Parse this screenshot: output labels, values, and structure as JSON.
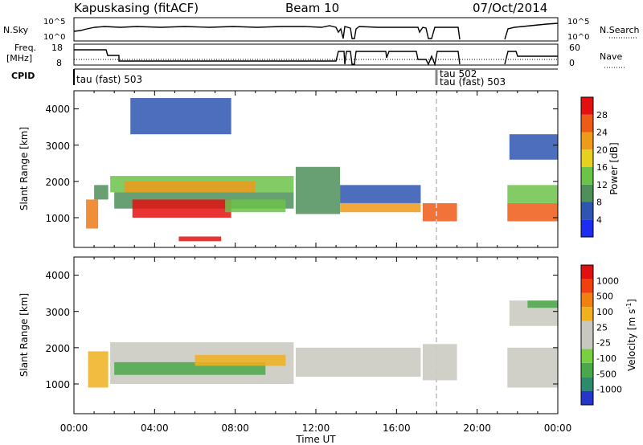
{
  "header": {
    "station": "Kapuskasing (fitACF)",
    "beam": "Beam 10",
    "date": "07/Oct/2014"
  },
  "panels": {
    "nsky": {
      "left_label": "N.Sky",
      "ticks_left": [
        "10^5",
        "10^0"
      ],
      "ticks_right": [
        "10^5",
        "10^0"
      ],
      "right_label": "N.Search",
      "right_legend": "dotted"
    },
    "freq": {
      "left_label_line1": "Freq.",
      "left_label_line2": "[MHz]",
      "ticks_left": [
        "18",
        "8"
      ],
      "ticks_right": [
        "60",
        "0"
      ],
      "right_label": "Nave",
      "right_legend": "dotted"
    },
    "cpid": {
      "label": "CPID",
      "segments": [
        {
          "text": "tau (fast) 503",
          "start_hour": 0.0
        },
        {
          "text": "tau 502",
          "start_hour": 18.05
        },
        {
          "text": "tau (fast) 503",
          "start_hour": 18.05
        }
      ]
    }
  },
  "colorbars": {
    "power": {
      "label": "Power [dB]",
      "ticks": [
        "4",
        "8",
        "12",
        "16",
        "20",
        "24",
        "28"
      ],
      "colors": [
        "#1e2cf0",
        "#2e55b0",
        "#4f8f5a",
        "#6dc24a",
        "#e6d020",
        "#ee9a1a",
        "#ee5a18",
        "#e41010"
      ]
    },
    "velocity": {
      "label": "Velocity [m s",
      "label_superscript": "-1",
      "label_close": "]",
      "ticks": [
        "1000",
        "500",
        "100",
        "25",
        "-25",
        "-100",
        "-500",
        "-1000"
      ],
      "colors": [
        "#2636c8",
        "#2e8a6c",
        "#4aa84a",
        "#78d040",
        "#c8c8c0",
        "#c8c8c0",
        "#f0b020",
        "#f08010",
        "#f04010",
        "#e01010"
      ]
    }
  },
  "chart_data": [
    {
      "type": "heatmap",
      "title": "Kapuskasing (fitACF) Beam 10 07/Oct/2014",
      "variable": "Power",
      "ylabel": "Slant Range [km]",
      "xlabel": "Time UT",
      "x_ticks": [
        "00:00",
        "04:00",
        "08:00",
        "12:00",
        "16:00",
        "20:00",
        "00:00"
      ],
      "y_ticks": [
        "1000",
        "2000",
        "3000",
        "4000"
      ],
      "xlim_hours": [
        0,
        24
      ],
      "ylim_km": [
        180,
        4500
      ],
      "regions": [
        {
          "t0": 0.6,
          "t1": 1.2,
          "r0": 700,
          "r1": 1500,
          "color": "#ee7a18"
        },
        {
          "t0": 1.0,
          "t1": 1.7,
          "r0": 1500,
          "r1": 1900,
          "color": "#4f8f5a"
        },
        {
          "t0": 1.8,
          "t1": 10.9,
          "r0": 1700,
          "r1": 2150,
          "color": "#6dc24a"
        },
        {
          "t0": 2.0,
          "t1": 10.9,
          "r0": 1250,
          "r1": 1700,
          "color": "#4f8f5a"
        },
        {
          "t0": 2.9,
          "t1": 7.8,
          "r0": 1000,
          "r1": 1500,
          "color": "#e41010"
        },
        {
          "t0": 2.5,
          "t1": 9.0,
          "r0": 1700,
          "r1": 2000,
          "color": "#ee9a1a"
        },
        {
          "t0": 7.5,
          "t1": 10.5,
          "r0": 1150,
          "r1": 1500,
          "color": "#6dc24a"
        },
        {
          "t0": 5.2,
          "t1": 7.3,
          "r0": 350,
          "r1": 480,
          "color": "#e41010"
        },
        {
          "t0": 11.0,
          "t1": 13.2,
          "r0": 1100,
          "r1": 2400,
          "color": "#4f8f5a"
        },
        {
          "t0": 13.2,
          "t1": 17.2,
          "r0": 1400,
          "r1": 1900,
          "color": "#2e55b0"
        },
        {
          "t0": 13.2,
          "t1": 17.2,
          "r0": 1150,
          "r1": 1400,
          "color": "#ee9a1a"
        },
        {
          "t0": 17.3,
          "t1": 19.0,
          "r0": 900,
          "r1": 1400,
          "color": "#ee5a18"
        },
        {
          "t0": 21.5,
          "t1": 24.0,
          "r0": 900,
          "r1": 1400,
          "color": "#ee5a18"
        },
        {
          "t0": 21.5,
          "t1": 24.0,
          "r0": 1400,
          "r1": 1900,
          "color": "#6dc24a"
        },
        {
          "t0": 21.6,
          "t1": 24.0,
          "r0": 2600,
          "r1": 3300,
          "color": "#2e55b0"
        },
        {
          "t0": 2.8,
          "t1": 7.8,
          "r0": 3300,
          "r1": 4300,
          "color": "#2e55b0"
        }
      ]
    },
    {
      "type": "heatmap",
      "variable": "Velocity",
      "ylabel": "Slant Range [km]",
      "xlabel": "Time UT",
      "x_ticks": [
        "00:00",
        "04:00",
        "08:00",
        "12:00",
        "16:00",
        "20:00",
        "00:00"
      ],
      "y_ticks": [
        "1000",
        "2000",
        "3000",
        "4000"
      ],
      "xlim_hours": [
        0,
        24
      ],
      "ylim_km": [
        180,
        4500
      ],
      "regions": [
        {
          "t0": 0.7,
          "t1": 1.7,
          "r0": 900,
          "r1": 1900,
          "color": "#f0b020"
        },
        {
          "t0": 1.8,
          "t1": 10.9,
          "r0": 1000,
          "r1": 2150,
          "color": "#c8c8c0"
        },
        {
          "t0": 2.0,
          "t1": 9.5,
          "r0": 1250,
          "r1": 1600,
          "color": "#4aa84a"
        },
        {
          "t0": 6.0,
          "t1": 10.5,
          "r0": 1500,
          "r1": 1800,
          "color": "#f0b020"
        },
        {
          "t0": 11.0,
          "t1": 17.2,
          "r0": 1200,
          "r1": 2000,
          "color": "#c8c8c0"
        },
        {
          "t0": 17.3,
          "t1": 19.0,
          "r0": 1100,
          "r1": 2100,
          "color": "#c8c8c0"
        },
        {
          "t0": 21.5,
          "t1": 24.0,
          "r0": 900,
          "r1": 2000,
          "color": "#c8c8c0"
        },
        {
          "t0": 21.6,
          "t1": 24.0,
          "r0": 2600,
          "r1": 3300,
          "color": "#c8c8c0"
        },
        {
          "t0": 22.5,
          "t1": 24.0,
          "r0": 3100,
          "r1": 3300,
          "color": "#4aa84a"
        }
      ]
    }
  ]
}
